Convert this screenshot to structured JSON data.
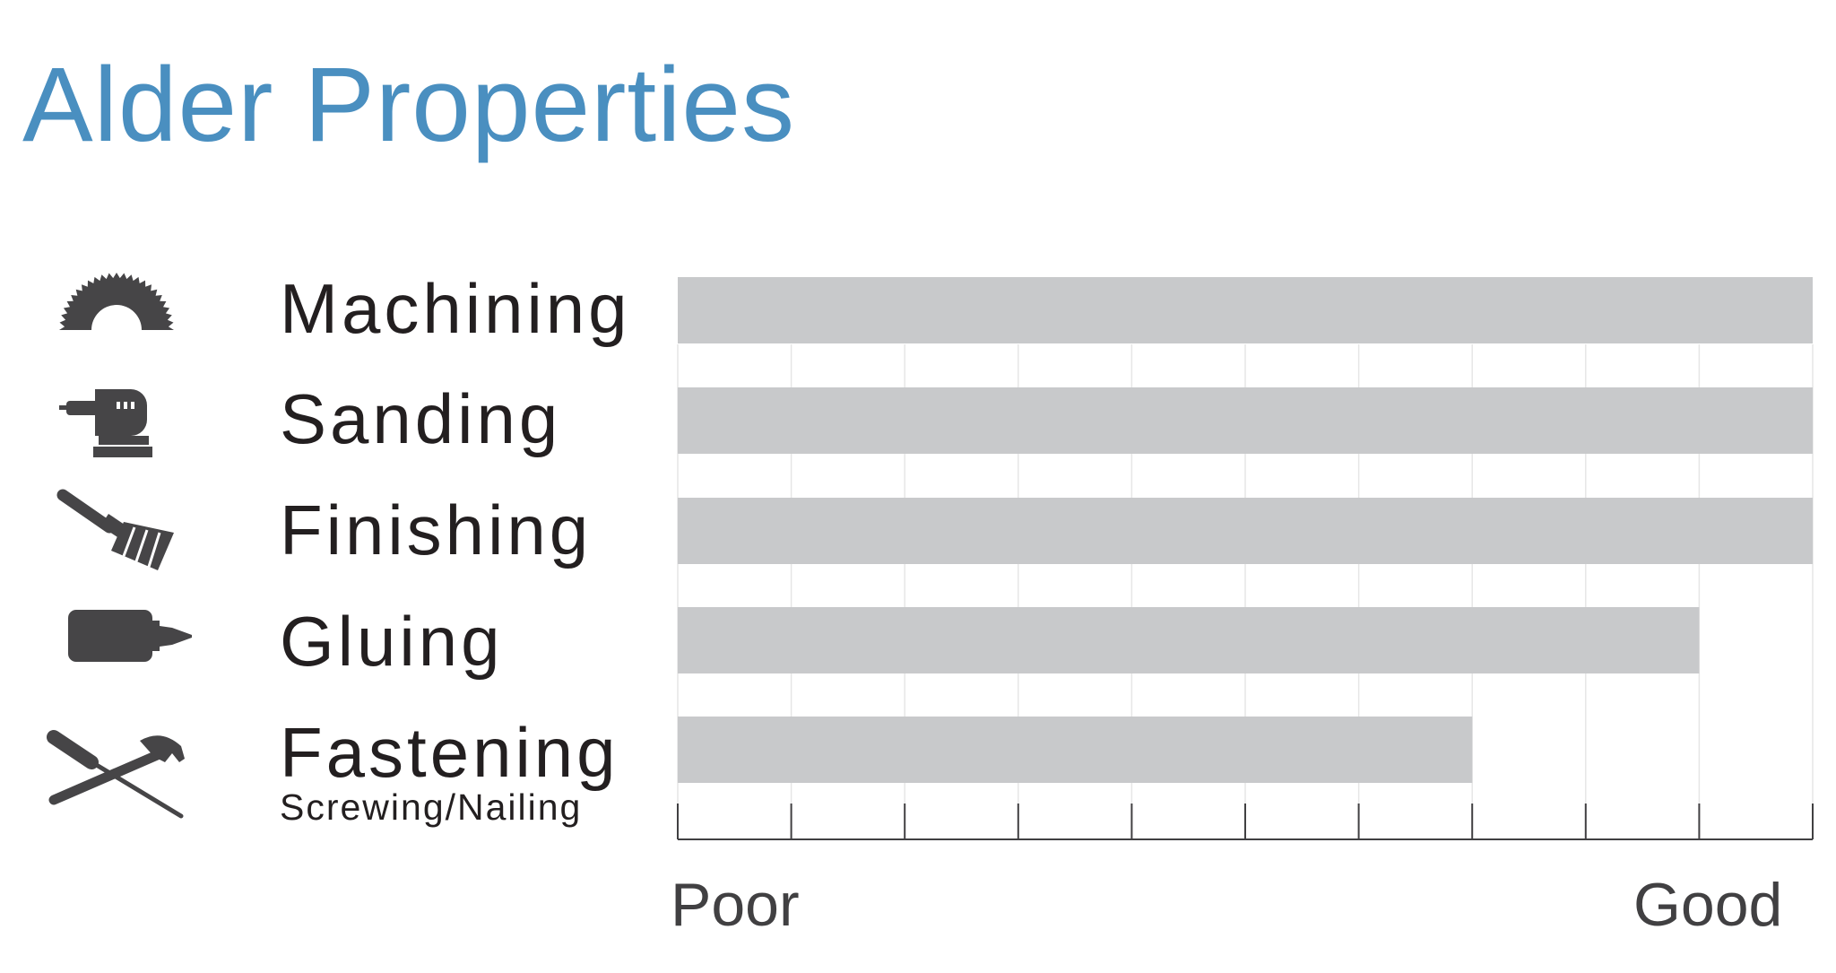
{
  "title": "Alder Properties",
  "colors": {
    "title": "#4a8fc0",
    "bar": "#c8c9cb",
    "icon": "#464547",
    "grid": "#e6e6e6",
    "axis": "#414042"
  },
  "chart_data": {
    "type": "bar",
    "orientation": "horizontal",
    "title": "Alder Properties",
    "categories": [
      "Machining",
      "Sanding",
      "Finishing",
      "Gluing",
      "Fastening"
    ],
    "category_sublabels": [
      "",
      "",
      "",
      "",
      "Screwing/Nailing"
    ],
    "category_icons": [
      "saw-blade-icon",
      "orbital-sander-icon",
      "paint-brush-icon",
      "glue-bottle-icon",
      "screwdriver-hammer-icon"
    ],
    "values": [
      10,
      10,
      10,
      9,
      7
    ],
    "xlim": [
      0,
      10
    ],
    "x_tick_count": 11,
    "x_scale_labels": {
      "low": "Poor",
      "high": "Good"
    },
    "grid": true
  }
}
